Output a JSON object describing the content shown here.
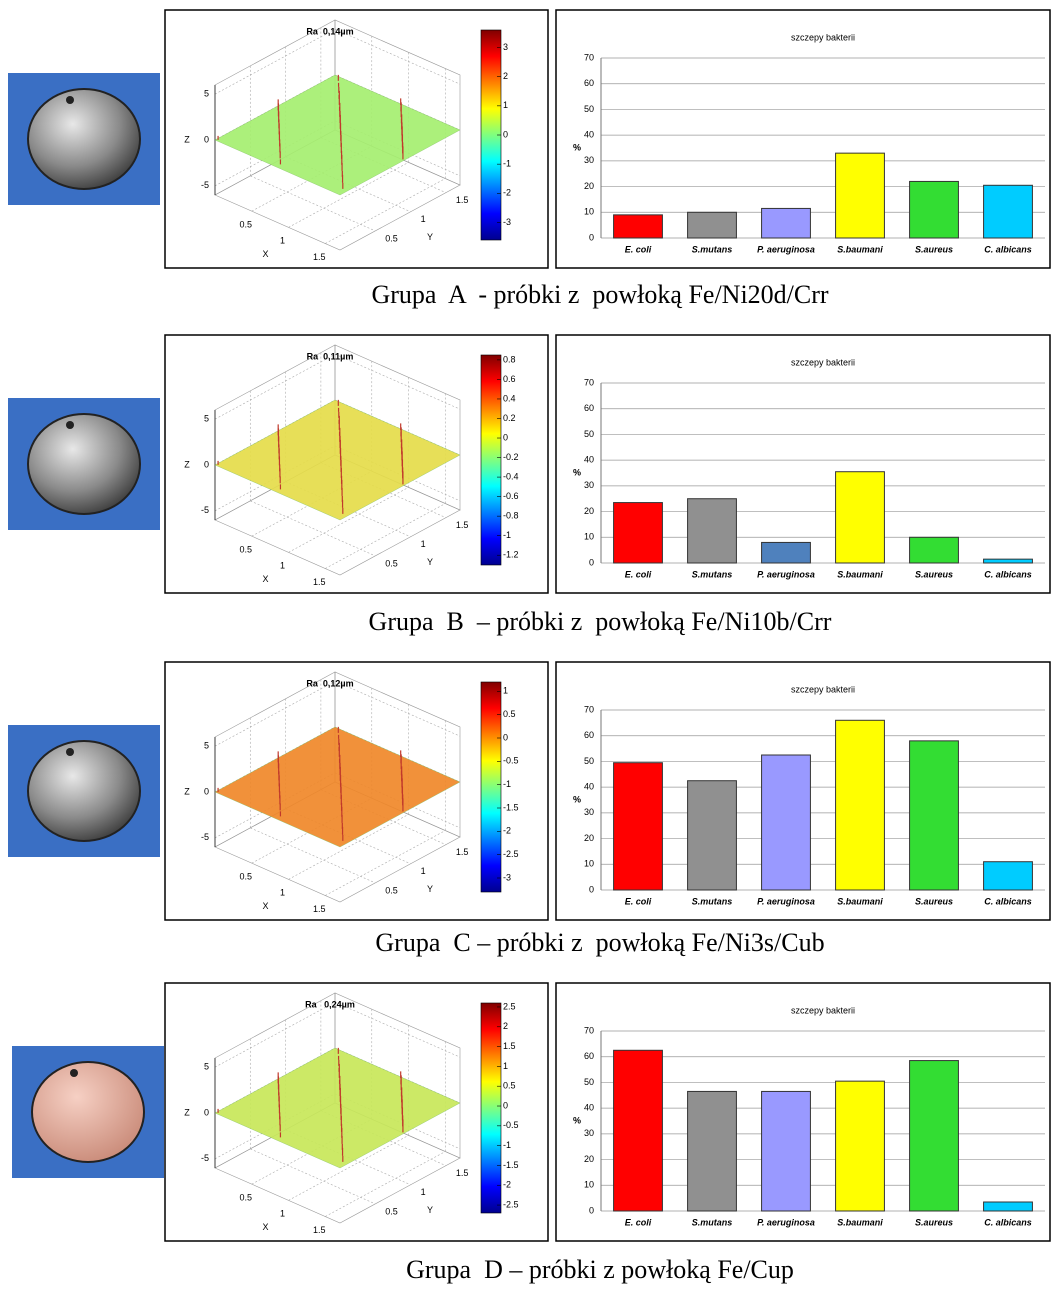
{
  "chart_data": [
    {
      "type": "surface",
      "title": "Ra  0,14µm",
      "xlabel": "X",
      "ylabel": "Y",
      "zlabel": "Z",
      "xlim": [
        0,
        1.7
      ],
      "ylim": [
        0,
        1.7
      ],
      "zlim": [
        -6,
        6
      ],
      "xticks": [
        0.5,
        1,
        1.5
      ],
      "yticks": [
        0.5,
        1,
        1.5
      ],
      "zticks": [
        -5,
        0,
        5
      ],
      "clim": [
        -3.6,
        3.6
      ],
      "cticks": [
        -3,
        -2,
        -1,
        0,
        1,
        2,
        3
      ],
      "colormap": "jet"
    },
    {
      "type": "bar",
      "title": "szczepy bakterii",
      "ylabel": "%",
      "categories": [
        "E. coli",
        "S.mutans",
        "P. aeruginosa",
        "S.baumani",
        "S.aureus",
        "C. albicans"
      ],
      "values": [
        9,
        10,
        11.5,
        33,
        22,
        20.5
      ],
      "colors": [
        "#ff0000",
        "#909090",
        "#9999ff",
        "#ffff00",
        "#33dd33",
        "#00ccff"
      ],
      "ylim": [
        0,
        70
      ],
      "yticks": [
        0,
        10,
        20,
        30,
        40,
        50,
        60,
        70
      ],
      "grid": true
    },
    {
      "type": "surface",
      "title": "Ra  0,11µm",
      "xlabel": "X",
      "ylabel": "Y",
      "zlabel": "Z",
      "xlim": [
        0,
        1.7
      ],
      "ylim": [
        0,
        1.7
      ],
      "zlim": [
        -6,
        6
      ],
      "xticks": [
        0.5,
        1,
        1.5
      ],
      "yticks": [
        0.5,
        1,
        1.5
      ],
      "zticks": [
        -5,
        0,
        5
      ],
      "clim": [
        -1.3,
        0.85
      ],
      "cticks": [
        -1.2,
        -1,
        -0.8,
        -0.6,
        -0.4,
        -0.2,
        0,
        0.2,
        0.4,
        0.6,
        0.8
      ],
      "colormap": "jet"
    },
    {
      "type": "bar",
      "title": "szczepy bakterii",
      "ylabel": "%",
      "categories": [
        "E. coli",
        "S.mutans",
        "P. aeruginosa",
        "S.baumani",
        "S.aureus",
        "C. albicans"
      ],
      "values": [
        23.5,
        25,
        8,
        35.5,
        10,
        1.5
      ],
      "colors": [
        "#ff0000",
        "#909090",
        "#4f81bd",
        "#ffff00",
        "#33dd33",
        "#00ccff"
      ],
      "ylim": [
        0,
        70
      ],
      "yticks": [
        0,
        10,
        20,
        30,
        40,
        50,
        60,
        70
      ],
      "grid": true
    },
    {
      "type": "surface",
      "title": "Ra  0,12µm",
      "xlabel": "X",
      "ylabel": "Y",
      "zlabel": "Z",
      "xlim": [
        0,
        1.7
      ],
      "ylim": [
        0,
        1.7
      ],
      "zlim": [
        -6,
        6
      ],
      "xticks": [
        0.5,
        1,
        1.5
      ],
      "yticks": [
        0.5,
        1,
        1.5
      ],
      "zticks": [
        -5,
        0,
        5
      ],
      "clim": [
        -3.3,
        1.2
      ],
      "cticks": [
        -3,
        -2.5,
        -2,
        -1.5,
        -1,
        -0.5,
        0,
        0.5,
        1
      ],
      "colormap": "jet"
    },
    {
      "type": "bar",
      "title": "szczepy bakterii",
      "ylabel": "%",
      "categories": [
        "E. coli",
        "S.mutans",
        "P. aeruginosa",
        "S.baumani",
        "S.aureus",
        "C. albicans"
      ],
      "values": [
        49.5,
        42.5,
        52.5,
        66,
        58,
        11
      ],
      "colors": [
        "#ff0000",
        "#909090",
        "#9999ff",
        "#ffff00",
        "#33dd33",
        "#00ccff"
      ],
      "ylim": [
        0,
        70
      ],
      "yticks": [
        0,
        10,
        20,
        30,
        40,
        50,
        60,
        70
      ],
      "grid": true
    },
    {
      "type": "surface",
      "title": "Ra   0,24µm",
      "xlabel": "X",
      "ylabel": "Y",
      "zlabel": "Z",
      "xlim": [
        0,
        1.7
      ],
      "ylim": [
        0,
        1.7
      ],
      "zlim": [
        -6,
        6
      ],
      "xticks": [
        0.5,
        1,
        1.5
      ],
      "yticks": [
        0.5,
        1,
        1.5
      ],
      "zticks": [
        -5,
        0,
        5
      ],
      "clim": [
        -2.7,
        2.6
      ],
      "cticks": [
        -2.5,
        -2,
        -1.5,
        -1,
        -0.5,
        0,
        0.5,
        1,
        1.5,
        2,
        2.5
      ],
      "colormap": "jet"
    },
    {
      "type": "bar",
      "title": "szczepy bakterii",
      "ylabel": "%",
      "categories": [
        "E. coli",
        "S.mutans",
        "P. aeruginosa",
        "S.baumani",
        "S.aureus",
        "C. albicans"
      ],
      "values": [
        62.5,
        46.5,
        46.5,
        50.5,
        58.5,
        3.5
      ],
      "colors": [
        "#ff0000",
        "#909090",
        "#9999ff",
        "#ffff00",
        "#33dd33",
        "#00ccff"
      ],
      "ylim": [
        0,
        70
      ],
      "yticks": [
        0,
        10,
        20,
        30,
        40,
        50,
        60,
        70
      ],
      "grid": true
    }
  ],
  "captions": [
    "Grupa  A  - próbki z  powłoką Fe/Ni20d/Crr",
    "Grupa  B  – próbki z  powłoką Fe/Ni10b/Crr",
    "Grupa  C – próbki z  powłoką Fe/Ni3s/Cub",
    "Grupa  D – próbki z powłoką Fe/Cup"
  ]
}
